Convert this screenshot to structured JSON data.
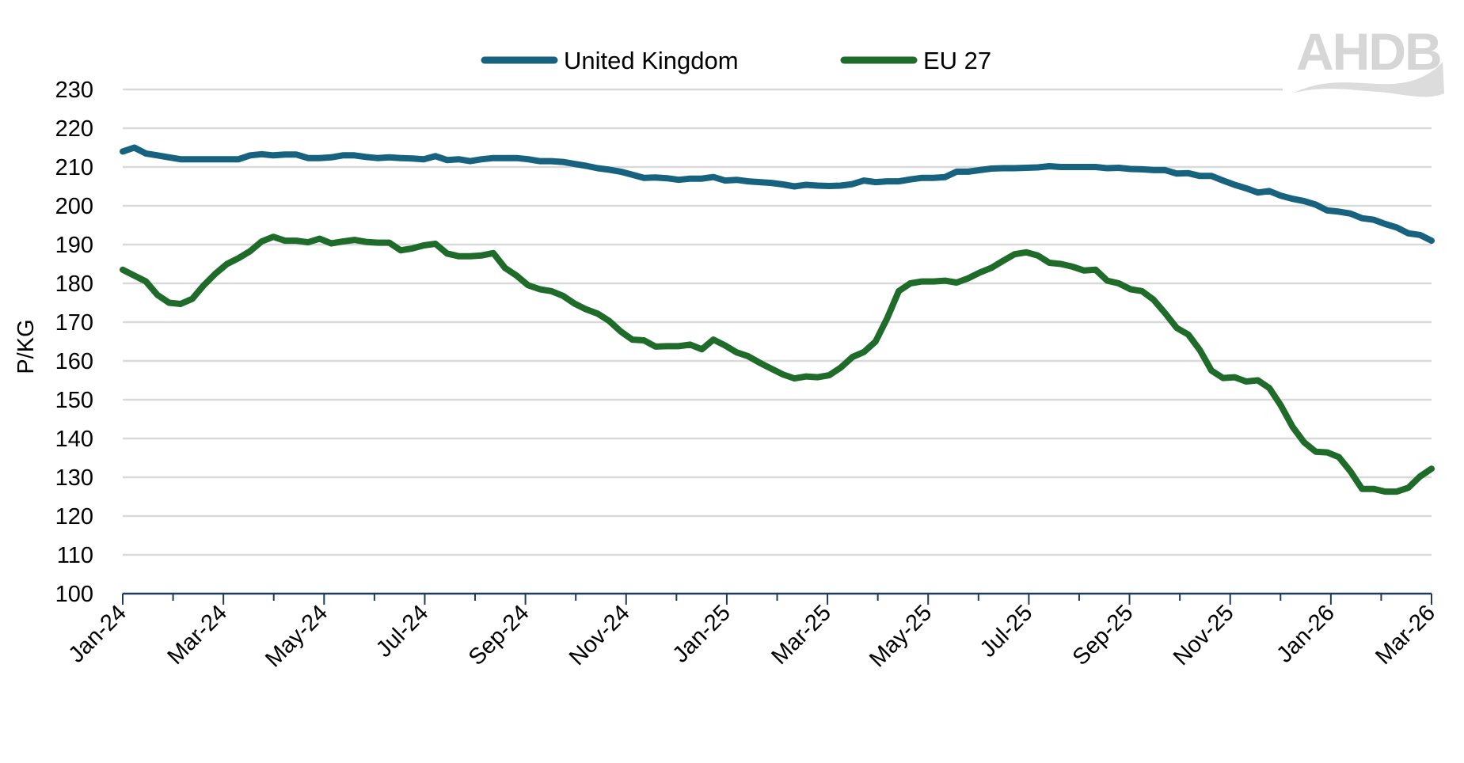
{
  "chart_data": {
    "type": "line",
    "title": "",
    "xlabel": "",
    "ylabel": "P/KG",
    "ylim": [
      100,
      230
    ],
    "y_ticks": [
      "100",
      "110",
      "120",
      "130",
      "140",
      "150",
      "160",
      "170",
      "180",
      "190",
      "200",
      "210",
      "220",
      "230"
    ],
    "x_range": [
      "Jan-24",
      "Mar-26"
    ],
    "x_tick_labels": [
      "Jan-24",
      "Mar-24",
      "May-24",
      "Jul-24",
      "Sep-24",
      "Nov-24",
      "Jan-25",
      "Mar-25",
      "May-25",
      "Jul-25",
      "Sep-25",
      "Nov-25",
      "Jan-26",
      "Mar-26"
    ],
    "grid": "horizontal",
    "legend": "top",
    "logo": "AHDB",
    "series": [
      {
        "name": "United Kingdom",
        "color": "#17627F",
        "values": [
          214,
          215,
          213.5,
          213,
          212.5,
          212,
          212,
          212,
          212,
          212,
          212,
          213,
          213.3,
          213,
          213.2,
          213.2,
          212.3,
          212.3,
          212.5,
          213,
          213,
          212.6,
          212.3,
          212.5,
          212.3,
          212.2,
          212,
          212.8,
          211.8,
          212,
          211.5,
          212,
          212.3,
          212.3,
          212.3,
          212,
          211.5,
          211.5,
          211.3,
          210.8,
          210.3,
          209.7,
          209.3,
          208.8,
          208,
          207.2,
          207.3,
          207.1,
          206.7,
          207,
          207,
          207.4,
          206.5,
          206.7,
          206.3,
          206.1,
          205.9,
          205.5,
          205,
          205.4,
          205.2,
          205.1,
          205.2,
          205.6,
          206.5,
          206.1,
          206.3,
          206.3,
          206.8,
          207.2,
          207.2,
          207.4,
          208.8,
          208.8,
          209.2,
          209.6,
          209.7,
          209.7,
          209.8,
          209.9,
          210.2,
          210,
          210,
          210,
          210,
          209.7,
          209.8,
          209.5,
          209.4,
          209.2,
          209.2,
          208.3,
          208.4,
          207.7,
          207.7,
          206.5,
          205.4,
          204.5,
          203.4,
          203.8,
          202.6,
          201.8,
          201.2,
          200.3,
          198.8,
          198.5,
          198,
          196.8,
          196.4,
          195.3,
          194.4,
          192.9,
          192.5,
          191
        ]
      },
      {
        "name": "EU 27",
        "color": "#1E6B2A",
        "values": [
          183.5,
          182,
          180.5,
          177,
          175,
          174.7,
          176,
          179.5,
          182.5,
          185,
          186.5,
          188.3,
          190.8,
          192,
          191,
          191,
          190.6,
          191.5,
          190.3,
          190.8,
          191.2,
          190.7,
          190.5,
          190.5,
          188.5,
          189,
          189.8,
          190.2,
          187.7,
          187,
          187,
          187.2,
          187.8,
          184,
          182,
          179.5,
          178.5,
          178,
          176.8,
          174.8,
          173.3,
          172.2,
          170.3,
          167.6,
          165.5,
          165.3,
          163.7,
          163.8,
          163.8,
          164.2,
          163,
          165.5,
          164,
          162.2,
          161.2,
          159.5,
          158,
          156.5,
          155.5,
          156,
          155.8,
          156.3,
          158.3,
          161,
          162.3,
          165,
          171,
          178,
          180,
          180.5,
          180.5,
          180.7,
          180.2,
          181.3,
          182.8,
          184,
          185.8,
          187.5,
          188,
          187.2,
          185.3,
          185,
          184.3,
          183.3,
          183.5,
          180.7,
          180,
          178.5,
          178,
          175.8,
          172.3,
          168.5,
          166.8,
          162.8,
          157.5,
          155.6,
          155.8,
          154.7,
          155,
          153,
          148.5,
          143,
          139,
          136.6,
          136.4,
          135.2,
          131.5,
          127,
          127,
          126.3,
          126.3,
          127.3,
          130.2,
          132.2
        ]
      }
    ]
  }
}
